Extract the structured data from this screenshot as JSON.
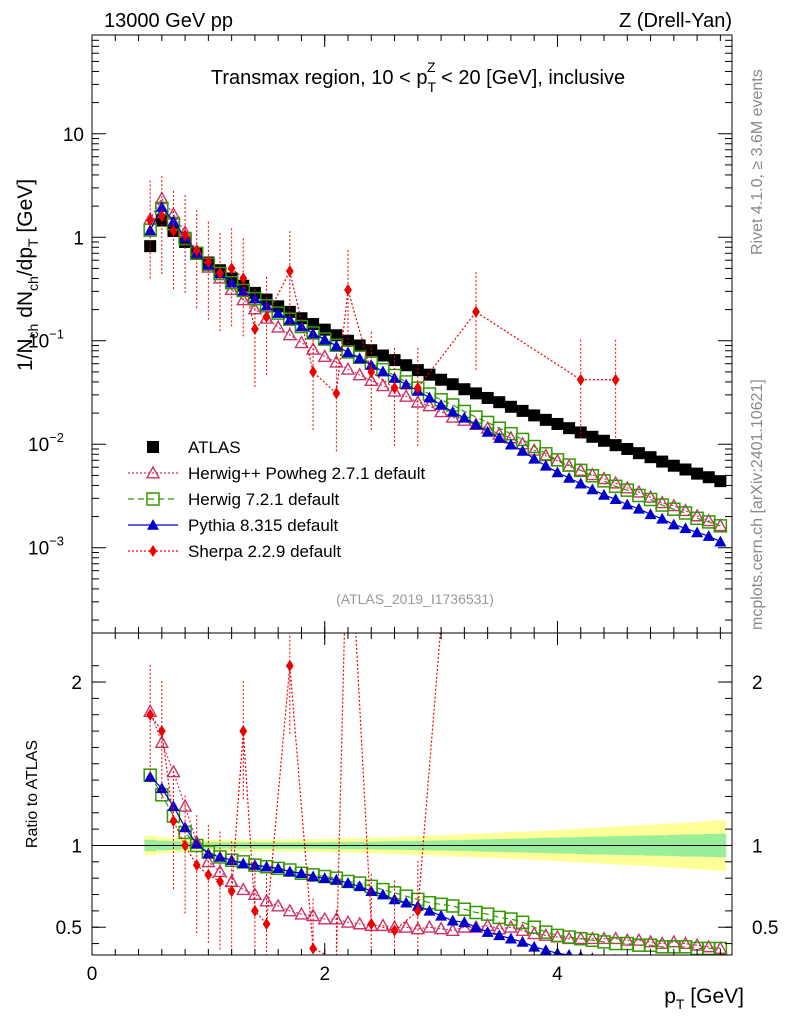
{
  "header": {
    "left": "13000 GeV pp",
    "right": "Z (Drell-Yan)",
    "side_top": "Rivet 4.1.0, ≥ 3.6M events",
    "side_bottom": "mcplots.cern.ch [arXiv:2401.10621]"
  },
  "chart_data": {
    "type": "line",
    "title": "Transmax region, 10 < p_T^Z < 20 [GeV], inclusive",
    "title_parts": {
      "pre": "Transmax region, 10 < p",
      "sub": "T",
      "sup": "Z",
      "post": " < 20 [GeV], inclusive"
    },
    "reference": "(ATLAS_2019_I1736531)",
    "xlabel": "p_T [GeV]",
    "xlabel_parts": {
      "main": "p",
      "sub": "T",
      "post": " [GeV]"
    },
    "ylabel": "1/N_ch dN_ch/dp_T [GeV]",
    "ylabel_parts": [
      "1/N",
      "ch",
      " dN",
      "ch",
      "/dp",
      "T",
      " [GeV]"
    ],
    "ratio_ylabel": "Ratio to ATLAS",
    "xlim": [
      0,
      5.5
    ],
    "ylim": [
      0.00015,
      90
    ],
    "yscale": "log",
    "ratio_ylim": [
      0.33,
      2.3
    ],
    "x_ticks": [
      {
        "value": 0,
        "label": "0"
      },
      {
        "value": 2,
        "label": "2"
      },
      {
        "value": 4,
        "label": "4"
      }
    ],
    "y_ticks": [
      {
        "value": 10,
        "label": "10",
        "exp": ""
      },
      {
        "value": 1,
        "label": "1",
        "exp": ""
      },
      {
        "value": 0.1,
        "label": "10",
        "exp": "−1"
      },
      {
        "value": 0.01,
        "label": "10",
        "exp": "−2"
      },
      {
        "value": 0.001,
        "label": "10",
        "exp": "−3"
      }
    ],
    "ratio_ticks": [
      {
        "value": 0.5,
        "label": "0.5"
      },
      {
        "value": 1,
        "label": "1"
      },
      {
        "value": 2,
        "label": "2"
      }
    ],
    "x": [
      0.5,
      0.6,
      0.7,
      0.8,
      0.9,
      1.0,
      1.1,
      1.2,
      1.3,
      1.4,
      1.5,
      1.6,
      1.7,
      1.8,
      1.9,
      2.0,
      2.1,
      2.2,
      2.3,
      2.4,
      2.5,
      2.6,
      2.7,
      2.8,
      2.9,
      3.0,
      3.1,
      3.2,
      3.3,
      3.4,
      3.5,
      3.6,
      3.7,
      3.8,
      3.9,
      4.0,
      4.1,
      4.2,
      4.3,
      4.4,
      4.5,
      4.6,
      4.7,
      4.8,
      4.9,
      5.0,
      5.1,
      5.2,
      5.3,
      5.4
    ],
    "atlas": [
      0.82,
      1.45,
      1.15,
      0.9,
      0.7,
      0.57,
      0.48,
      0.4,
      0.34,
      0.29,
      0.25,
      0.215,
      0.19,
      0.165,
      0.145,
      0.128,
      0.113,
      0.1,
      0.09,
      0.081,
      0.072,
      0.065,
      0.058,
      0.052,
      0.047,
      0.042,
      0.038,
      0.034,
      0.031,
      0.028,
      0.0255,
      0.023,
      0.021,
      0.019,
      0.0172,
      0.0157,
      0.0143,
      0.013,
      0.0118,
      0.0108,
      0.0098,
      0.009,
      0.0082,
      0.0075,
      0.0068,
      0.0062,
      0.0057,
      0.0052,
      0.0048,
      0.0044
    ],
    "band_inner": [
      0.035,
      0.03,
      0.027,
      0.025,
      0.022,
      0.02,
      0.02,
      0.02,
      0.02,
      0.02,
      0.02,
      0.02,
      0.02,
      0.02,
      0.02,
      0.02,
      0.022,
      0.022,
      0.022,
      0.024,
      0.025,
      0.026,
      0.027,
      0.028,
      0.03,
      0.031,
      0.032,
      0.034,
      0.036,
      0.038,
      0.04,
      0.041,
      0.043,
      0.045,
      0.047,
      0.048,
      0.05,
      0.052,
      0.054,
      0.055,
      0.057,
      0.058,
      0.06,
      0.062,
      0.063,
      0.065,
      0.067,
      0.068,
      0.07,
      0.072
    ],
    "band_outer": [
      0.06,
      0.05,
      0.045,
      0.04,
      0.038,
      0.035,
      0.035,
      0.035,
      0.035,
      0.035,
      0.036,
      0.036,
      0.037,
      0.038,
      0.039,
      0.04,
      0.042,
      0.044,
      0.046,
      0.048,
      0.05,
      0.052,
      0.055,
      0.058,
      0.06,
      0.063,
      0.066,
      0.069,
      0.072,
      0.075,
      0.078,
      0.082,
      0.085,
      0.088,
      0.092,
      0.095,
      0.1,
      0.104,
      0.108,
      0.112,
      0.116,
      0.12,
      0.124,
      0.128,
      0.132,
      0.136,
      0.14,
      0.145,
      0.15,
      0.155
    ],
    "series": [
      {
        "name": "ATLAS",
        "id": "atlas",
        "color": "#000000",
        "marker": "square-filled",
        "line": "none"
      },
      {
        "name": "Herwig++ Powheg 2.7.1 default",
        "id": "herwigpp",
        "color": "#cc3366",
        "marker": "triangle-open",
        "line": "dotted",
        "ratio": [
          1.82,
          1.63,
          1.45,
          1.24,
          1.02,
          0.9,
          0.84,
          0.78,
          0.73,
          0.7,
          0.66,
          0.63,
          0.6,
          0.58,
          0.57,
          0.55,
          0.55,
          0.53,
          0.52,
          0.51,
          0.51,
          0.5,
          0.5,
          0.49,
          0.5,
          0.49,
          0.48,
          0.5,
          0.5,
          0.51,
          0.49,
          0.5,
          0.48,
          0.46,
          0.45,
          0.44,
          0.43,
          0.43,
          0.43,
          0.43,
          0.43,
          0.42,
          0.42,
          0.41,
          0.4,
          0.41,
          0.4,
          0.39,
          0.38,
          0.37
        ]
      },
      {
        "name": "Herwig 7.2.1 default",
        "id": "herwig7",
        "color": "#339900",
        "marker": "square-open",
        "line": "dashed",
        "ratio": [
          1.43,
          1.31,
          1.18,
          1.08,
          1.0,
          0.96,
          0.93,
          0.91,
          0.9,
          0.88,
          0.87,
          0.86,
          0.85,
          0.83,
          0.82,
          0.81,
          0.8,
          0.78,
          0.77,
          0.75,
          0.73,
          0.71,
          0.69,
          0.67,
          0.65,
          0.64,
          0.63,
          0.61,
          0.59,
          0.58,
          0.56,
          0.55,
          0.53,
          0.5,
          0.47,
          0.45,
          0.44,
          0.43,
          0.42,
          0.41,
          0.4,
          0.4,
          0.39,
          0.39,
          0.38,
          0.38,
          0.38,
          0.37,
          0.37,
          0.37
        ]
      },
      {
        "name": "Pythia 8.315 default",
        "id": "pythia",
        "color": "#0000cc",
        "marker": "triangle-filled",
        "line": "solid",
        "ratio": [
          1.42,
          1.35,
          1.24,
          1.11,
          1.01,
          0.95,
          0.93,
          0.91,
          0.89,
          0.88,
          0.87,
          0.86,
          0.84,
          0.83,
          0.81,
          0.8,
          0.79,
          0.77,
          0.75,
          0.72,
          0.7,
          0.67,
          0.65,
          0.63,
          0.6,
          0.57,
          0.54,
          0.53,
          0.5,
          0.47,
          0.45,
          0.43,
          0.41,
          0.38,
          0.36,
          0.34,
          0.33,
          0.32,
          0.31,
          0.3,
          0.3,
          0.29,
          0.29,
          0.28,
          0.28,
          0.27,
          0.27,
          0.27,
          0.27,
          0.26
        ]
      },
      {
        "name": "Sherpa 2.2.9 default",
        "id": "sherpa",
        "color": "#ee0000",
        "marker": "diamond-filled",
        "line": "dotted",
        "x": [
          0.5,
          0.6,
          0.7,
          0.8,
          0.9,
          1.0,
          1.1,
          1.2,
          1.3,
          1.4,
          1.5,
          1.7,
          1.9,
          2.1,
          2.2,
          2.4,
          2.6,
          2.8,
          3.3,
          4.2,
          4.5
        ],
        "y": [
          1.45,
          1.6,
          1.15,
          1.05,
          0.75,
          0.58,
          0.45,
          0.5,
          0.4,
          0.13,
          0.17,
          0.47,
          0.05,
          0.031,
          0.31,
          0.05,
          0.035,
          0.035,
          0.19,
          0.042,
          0.042
        ],
        "ratio": [
          1.8,
          1.7,
          1.15,
          1.0,
          0.88,
          0.82,
          0.78,
          0.72,
          1.7,
          0.6,
          0.52,
          2.1,
          0.37,
          0.3,
          3.2,
          0.52,
          0.48,
          0.6,
          5.0,
          3.0,
          3.5
        ]
      }
    ]
  }
}
